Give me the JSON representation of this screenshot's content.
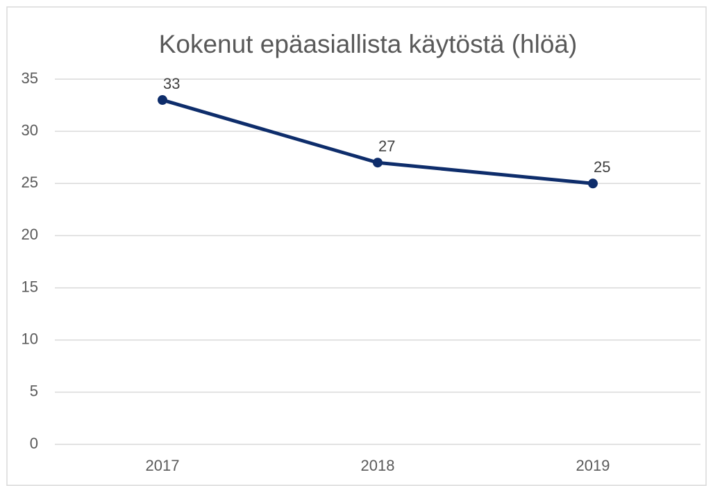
{
  "chart_data": {
    "type": "line",
    "title": "Kokenut epäasiallista käytöstä (hlöä)",
    "categories": [
      "2017",
      "2018",
      "2019"
    ],
    "series": [
      {
        "name": "Kokenut epäasiallista käytöstä",
        "color": "#0e2d6b",
        "values": [
          33,
          27,
          25
        ]
      }
    ],
    "ylim": [
      0,
      35
    ],
    "yticks": [
      0,
      5,
      10,
      15,
      20,
      25,
      30,
      35
    ],
    "grid": true
  }
}
